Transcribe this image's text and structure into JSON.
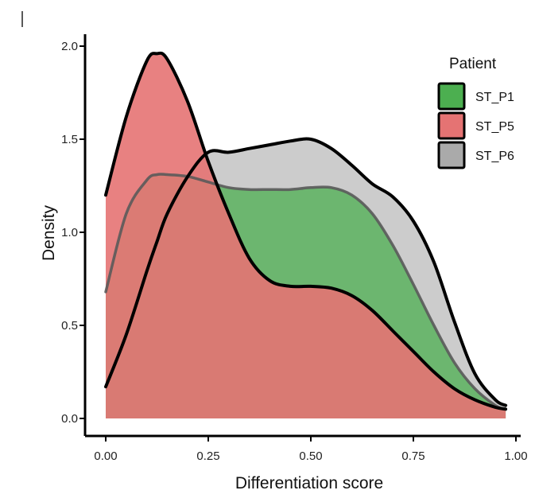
{
  "chart_data": {
    "type": "area",
    "subtype": "density",
    "title": "",
    "xlabel": "Differentiation score",
    "ylabel": "Density",
    "xlim": [
      0.0,
      1.0
    ],
    "ylim": [
      0.0,
      2.0
    ],
    "x_ticks": [
      0.0,
      0.25,
      0.5,
      0.75,
      1.0
    ],
    "x_tick_labels": [
      "0.00",
      "0.25",
      "0.50",
      "0.75",
      "1.00"
    ],
    "y_ticks": [
      0.0,
      0.5,
      1.0,
      1.5,
      2.0
    ],
    "y_tick_labels": [
      "0.0",
      "0.5",
      "1.0",
      "1.5",
      "2.0"
    ],
    "grid": false,
    "legend": {
      "title": "Patient",
      "position": "top-right"
    },
    "x": [
      0.0,
      0.05,
      0.1,
      0.125,
      0.15,
      0.2,
      0.25,
      0.3,
      0.35,
      0.4,
      0.45,
      0.5,
      0.55,
      0.6,
      0.65,
      0.7,
      0.75,
      0.8,
      0.85,
      0.9,
      0.95,
      0.975
    ],
    "series": [
      {
        "name": "ST_P1",
        "color": "#4CAF50",
        "values": [
          0.68,
          1.1,
          1.28,
          1.31,
          1.31,
          1.3,
          1.27,
          1.24,
          1.23,
          1.23,
          1.23,
          1.24,
          1.24,
          1.2,
          1.1,
          0.93,
          0.72,
          0.5,
          0.3,
          0.16,
          0.07,
          0.05
        ]
      },
      {
        "name": "ST_P5",
        "color": "#E57373",
        "values": [
          1.2,
          1.62,
          1.92,
          1.96,
          1.93,
          1.7,
          1.38,
          1.1,
          0.86,
          0.74,
          0.71,
          0.71,
          0.7,
          0.66,
          0.58,
          0.47,
          0.36,
          0.25,
          0.16,
          0.1,
          0.06,
          0.05
        ]
      },
      {
        "name": "ST_P6",
        "color": "#AAAAAA",
        "values": [
          0.17,
          0.45,
          0.79,
          0.95,
          1.1,
          1.3,
          1.43,
          1.43,
          1.45,
          1.47,
          1.49,
          1.5,
          1.45,
          1.36,
          1.26,
          1.19,
          1.06,
          0.84,
          0.52,
          0.24,
          0.1,
          0.07
        ]
      }
    ]
  }
}
